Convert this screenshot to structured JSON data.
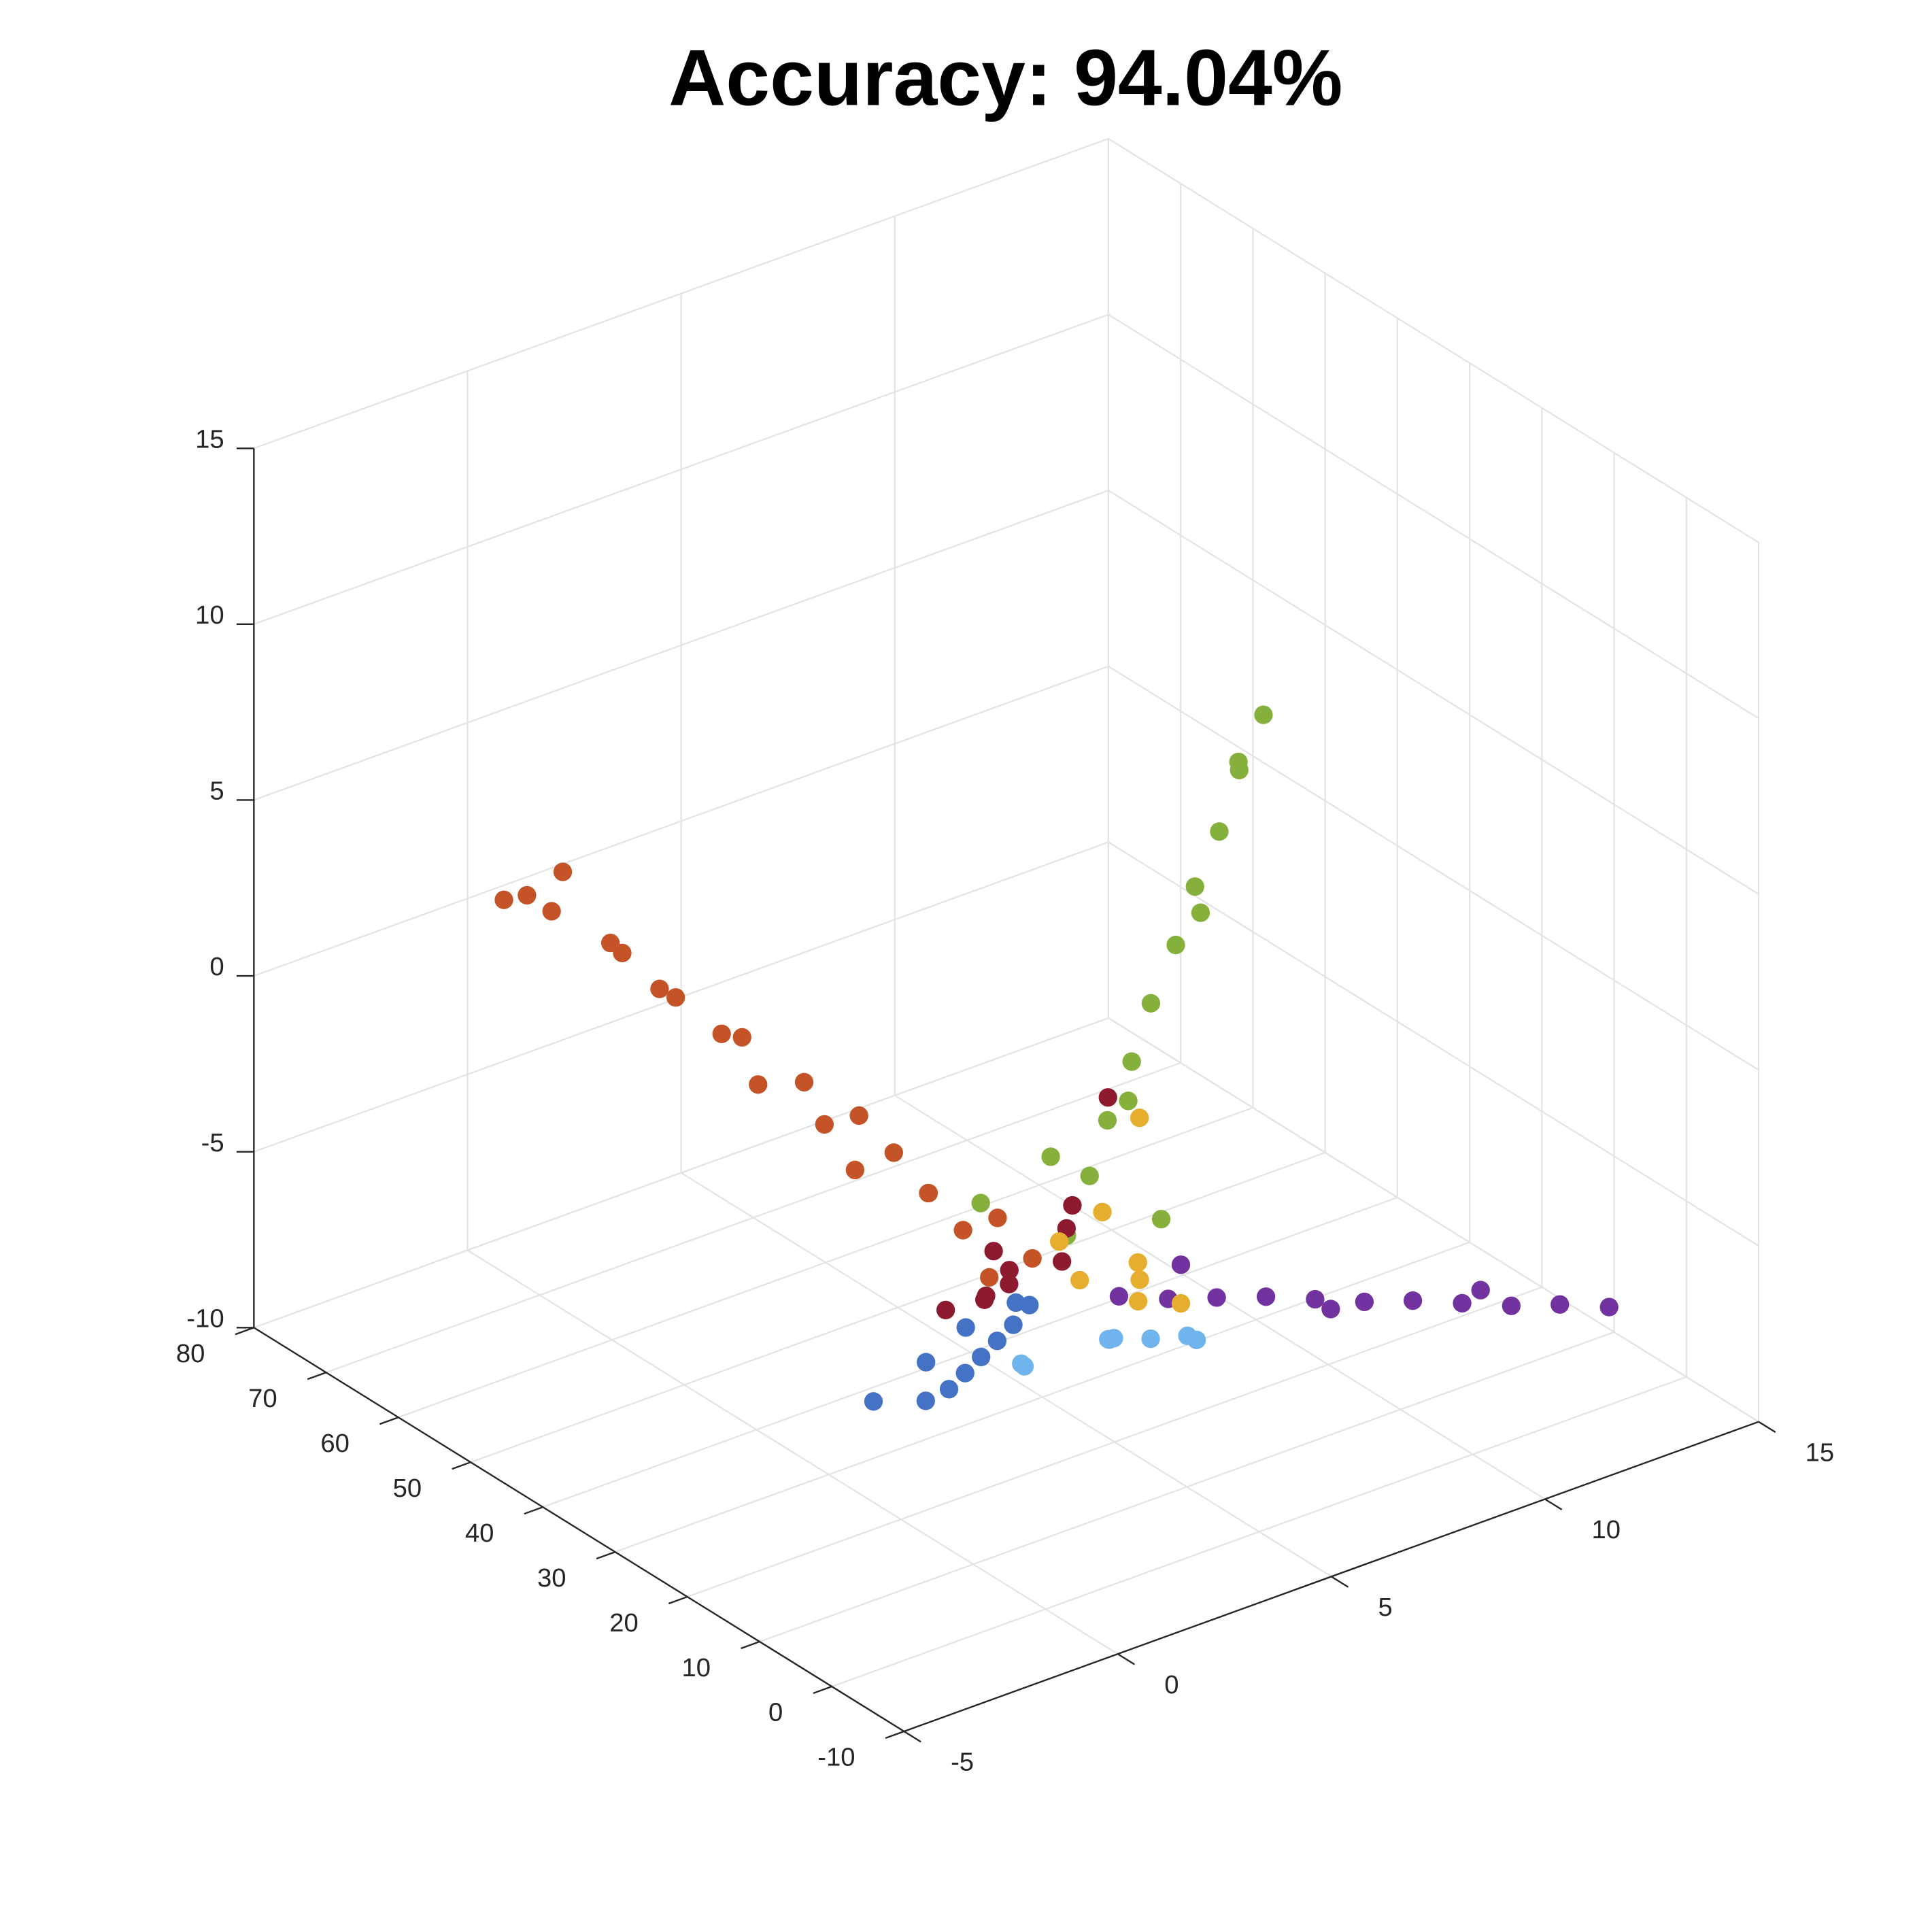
{
  "chart_data": {
    "type": "scatter3d",
    "title": "Accuracy: 94.04%",
    "xlim": [
      -5,
      15
    ],
    "xticks": [
      -5,
      0,
      5,
      10,
      15
    ],
    "ylim": [
      -10,
      80
    ],
    "yticks": [
      -10,
      0,
      10,
      20,
      30,
      40,
      50,
      60,
      70,
      80
    ],
    "zlim": [
      -10,
      15
    ],
    "zticks": [
      -10,
      -5,
      0,
      5,
      10,
      15
    ],
    "grid": true,
    "series": [
      {
        "color": "#c45427",
        "x": [
          0.2,
          -0.3,
          0.4,
          0.1,
          -0.2,
          0.3,
          0,
          -0.4,
          0.2,
          -0.1,
          0.1,
          -0.3,
          0,
          0.2,
          -0.2,
          0.1,
          -0.1,
          0.3,
          -0.4,
          -0.3,
          0.2,
          -0.5
        ],
        "y": [
          3,
          6,
          9,
          12,
          15,
          18,
          21,
          24,
          27,
          30,
          34,
          38,
          42,
          46,
          50,
          54,
          58,
          62,
          66,
          70,
          68,
          72
        ],
        "z": [
          -0.5,
          -1.2,
          -0.2,
          -0.8,
          0,
          -0.6,
          0.3,
          -0.4,
          0.5,
          0,
          0.6,
          0.2,
          0.9,
          0.4,
          1.1,
          0.7,
          1.3,
          0.9,
          1.6,
          1.5,
          2.2,
          1.2
        ]
      },
      {
        "color": "#4472c4",
        "x": [
          0.3,
          0.6,
          0.9,
          1.2,
          1.5,
          1.8,
          2.1,
          2.4,
          1,
          0.5,
          1.6
        ],
        "y": [
          4,
          8,
          12,
          16,
          20,
          24,
          29,
          38,
          10,
          14,
          26
        ],
        "z": [
          -2,
          -3.2,
          -4.3,
          -5.4,
          -6.5,
          -7.6,
          -8.7,
          -10,
          -3,
          -4,
          -7
        ]
      },
      {
        "color": "#6fb4ec",
        "x": [
          1.6,
          2,
          2.5,
          3,
          3.5,
          1.2,
          2.8,
          4,
          1.8,
          3.2
        ],
        "y": [
          0,
          3,
          6,
          9,
          12,
          10,
          2,
          4,
          14,
          -2
        ],
        "z": [
          -3,
          -3.6,
          -4.2,
          -4.8,
          -5.4,
          -4.9,
          -3.8,
          -4.5,
          -5.6,
          -3.5
        ]
      },
      {
        "color": "#7232a0",
        "x": [
          1.5,
          2.5,
          3.5,
          4.5,
          5.5,
          6.5,
          7.5,
          8.5,
          9.5,
          10.5,
          11.5,
          3,
          6,
          9
        ],
        "y": [
          -1.3,
          -2.2,
          -3,
          -3.9,
          -4.8,
          -5.7,
          -6.5,
          -7.4,
          -8.3,
          -9.1,
          -10,
          -1,
          -4,
          -7
        ],
        "z": [
          -1.6,
          -2,
          -2.3,
          -2.6,
          -3,
          -3.4,
          -3.7,
          -4.1,
          -4.5,
          -4.8,
          -5.2,
          -1.4,
          -3.6,
          -4
        ]
      },
      {
        "color": "#86b03c",
        "x": [
          0.5,
          1,
          1.5,
          2,
          2.5,
          3,
          3.5,
          4,
          4.5,
          5,
          0.8,
          2.2,
          3.8,
          -0.5,
          1.6,
          4.6
        ],
        "y": [
          0,
          -0.2,
          0.3,
          -0.1,
          0.2,
          -0.3,
          0,
          -0.4,
          -0.2,
          -0.6,
          4,
          -3,
          1,
          6,
          -2,
          0.5
        ],
        "z": [
          0.4,
          1.9,
          3.2,
          4.7,
          6.1,
          7.6,
          9,
          10.4,
          11.9,
          13.3,
          2,
          0.5,
          8,
          1,
          4,
          12
        ]
      },
      {
        "color": "#8e1a30",
        "x": [
          0,
          0.5,
          1,
          0.3,
          -0.2,
          0.8,
          1.4,
          0.6,
          1.8,
          0.2
        ],
        "y": [
          5,
          8,
          3,
          10,
          6,
          1,
          6,
          12,
          2,
          15
        ],
        "z": [
          -1,
          -2,
          0,
          -2.5,
          -0.5,
          1,
          -1.5,
          -3,
          3.5,
          -3.5
        ]
      },
      {
        "color": "#e6ad2e",
        "x": [
          0.8,
          1.5,
          2,
          2.5,
          1,
          3,
          2.2,
          1.7
        ],
        "y": [
          0,
          1,
          -1,
          2,
          4,
          -1,
          0,
          -3
        ],
        "z": [
          -1,
          0.5,
          -2,
          -1.5,
          -0.5,
          -2.5,
          3,
          -1
        ]
      }
    ]
  }
}
